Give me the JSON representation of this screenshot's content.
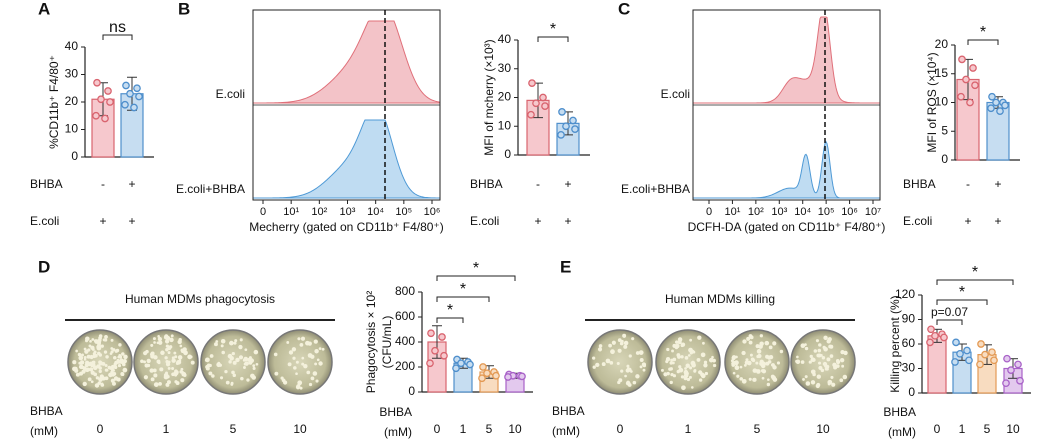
{
  "chart_data": [
    {
      "type": "bar",
      "panel": "A",
      "ylabel": "%CD11b⁺ F4/80⁺",
      "ylim": [
        0,
        40
      ],
      "yticks": [
        0,
        10,
        20,
        30,
        40
      ],
      "categories": [
        null,
        null
      ],
      "values": [
        21,
        23
      ],
      "errors": [
        6,
        6
      ],
      "colors": [
        "#f6c8cd",
        "#c6ddf1"
      ],
      "edge_colors": [
        "#d9646f",
        "#4f8fcc"
      ],
      "points": [
        [
          27,
          24,
          21,
          20,
          15,
          14
        ],
        [
          26,
          25,
          23,
          22,
          19,
          18
        ]
      ],
      "annotations": [
        "ns"
      ],
      "conditions": [
        {
          "label": "BHBA",
          "marks": [
            "-",
            "+"
          ]
        },
        {
          "label": "E.coli",
          "marks": [
            "+",
            "+"
          ]
        }
      ]
    },
    {
      "type": "flow",
      "panel": "B",
      "samples": [
        "E.coli",
        "E.coli+BHBA"
      ],
      "colors": [
        "#f3c3c8",
        "#bfdcf2"
      ],
      "edge_colors": [
        "#e0707a",
        "#4f9ad6"
      ],
      "xtick_labels": [
        "0",
        "10¹",
        "10²",
        "10³",
        "10⁴",
        "10⁵",
        "10⁶"
      ],
      "xlabel": "Mecherry (gated on CD11b⁺ F4/80⁺)"
    },
    {
      "type": "bar",
      "ylabel": "MFI of mcherry (×10³)",
      "ylim": [
        0,
        40
      ],
      "yticks": [
        0,
        10,
        20,
        30,
        40
      ],
      "categories": [
        null,
        null
      ],
      "values": [
        19,
        11
      ],
      "errors": [
        6,
        4
      ],
      "colors": [
        "#f6c8cd",
        "#c6ddf1"
      ],
      "edge_colors": [
        "#d9646f",
        "#4f8fcc"
      ],
      "points": [
        [
          25,
          20,
          18,
          17,
          14
        ],
        [
          15,
          12,
          10,
          9,
          7
        ]
      ],
      "annotations": [
        "*"
      ],
      "conditions": [
        {
          "label": "BHBA",
          "marks": [
            "-",
            "+"
          ]
        },
        {
          "label": "E.coli",
          "marks": [
            "+",
            "+"
          ]
        }
      ]
    },
    {
      "type": "flow",
      "panel": "C",
      "samples": [
        "E.coli",
        "E.coli+BHBA"
      ],
      "colors": [
        "#f3c3c8",
        "#bfdcf2"
      ],
      "edge_colors": [
        "#e0707a",
        "#4f9ad6"
      ],
      "xtick_labels": [
        "0",
        "10¹",
        "10²",
        "10³",
        "10⁴",
        "10⁵",
        "10⁶",
        "10⁷"
      ],
      "xlabel": "DCFH-DA (gated on CD11b⁺ F4/80⁺)"
    },
    {
      "type": "bar",
      "ylabel": "MFI of ROS (×10⁴)",
      "ylim": [
        0,
        20
      ],
      "yticks": [
        0,
        5,
        10,
        15,
        20
      ],
      "categories": [
        null,
        null
      ],
      "values": [
        14,
        10
      ],
      "errors": [
        3.5,
        1
      ],
      "colors": [
        "#f6c8cd",
        "#c6ddf1"
      ],
      "edge_colors": [
        "#d9646f",
        "#4f8fcc"
      ],
      "points": [
        [
          17.5,
          16,
          14,
          13,
          11,
          10
        ],
        [
          11,
          10,
          10,
          9.5,
          9,
          8.5
        ]
      ],
      "annotations": [
        "*"
      ],
      "conditions": [
        {
          "label": "BHBA",
          "marks": [
            "-",
            "+"
          ]
        },
        {
          "label": "E.coli",
          "marks": [
            "+",
            "+"
          ]
        }
      ]
    },
    {
      "type": "bar",
      "ylabel": [
        "Phagocytosis × 10²",
        "(CFU/mL)"
      ],
      "ylim": [
        0,
        800
      ],
      "yticks": [
        0,
        200,
        400,
        600,
        800
      ],
      "xlabel": [
        "BHBA",
        "(mM)"
      ],
      "categories": [
        "0",
        "1",
        "5",
        "10"
      ],
      "values": [
        400,
        230,
        160,
        130
      ],
      "errors": [
        130,
        40,
        50,
        20
      ],
      "colors": [
        "#f6c8cd",
        "#c6ddf1",
        "#f8dcc0",
        "#e3c9ee"
      ],
      "edge_colors": [
        "#d9646f",
        "#4f8fcc",
        "#e39a55",
        "#a862c8"
      ],
      "points": [
        [
          470,
          440,
          330,
          290,
          230
        ],
        [
          260,
          240,
          230,
          220,
          190
        ],
        [
          200,
          160,
          150,
          130,
          110
        ],
        [
          140,
          130,
          130,
          125,
          120
        ]
      ],
      "annotations": [
        "*",
        "*",
        "*"
      ]
    },
    {
      "type": "bar",
      "ylabel": "Killing percent (%)",
      "ylim": [
        0,
        120
      ],
      "yticks": [
        0,
        30,
        60,
        90,
        120
      ],
      "xlabel": [
        "BHBA",
        "(mM)"
      ],
      "categories": [
        "0",
        "1",
        "5",
        "10"
      ],
      "values": [
        70,
        50,
        47,
        30
      ],
      "errors": [
        8,
        10,
        12,
        12
      ],
      "colors": [
        "#f6c8cd",
        "#c6ddf1",
        "#f8dcc0",
        "#e3c9ee"
      ],
      "edge_colors": [
        "#d9646f",
        "#4f8fcc",
        "#e39a55",
        "#a862c8"
      ],
      "points": [
        [
          78,
          72,
          70,
          68,
          62
        ],
        [
          62,
          52,
          48,
          40,
          38
        ],
        [
          60,
          50,
          47,
          40,
          35
        ],
        [
          42,
          35,
          28,
          15,
          12
        ]
      ],
      "annotations": [
        "p=0.07",
        "*",
        "*"
      ]
    }
  ],
  "plates": [
    {
      "panel": "D",
      "title": "Human MDMs phagocytosis",
      "row_labels": [
        "BHBA",
        "(mM)"
      ],
      "dish_labels": [
        "0",
        "1",
        "5",
        "10"
      ]
    },
    {
      "panel": "E",
      "title": "Human MDMs killing",
      "row_labels": [
        "BHBA",
        "(mM)"
      ],
      "dish_labels": [
        "0",
        "1",
        "5",
        "10"
      ]
    }
  ]
}
